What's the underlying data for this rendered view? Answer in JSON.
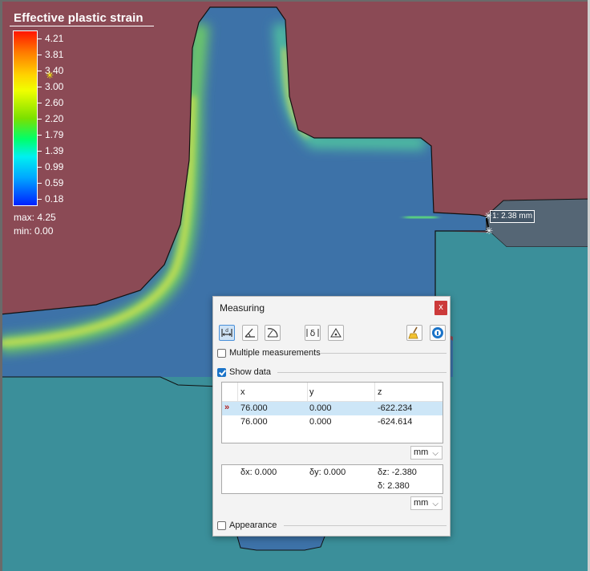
{
  "legend": {
    "title": "Effective plastic strain",
    "values": [
      "4.21",
      "3.81",
      "3.40",
      "3.00",
      "2.60",
      "2.20",
      "1.79",
      "1.39",
      "0.99",
      "0.59",
      "0.18"
    ],
    "max_label": "max:",
    "max_value": "4.25",
    "min_label": "min:",
    "min_value": "0.00",
    "marker_value": "3.40"
  },
  "measure_tag": "1: 2.38 mm",
  "colors": {
    "background_part": "#8b4a55",
    "workpiece_base": "#3b8f9a",
    "die_gray": "#556675",
    "accent_blue": "#1a73c8"
  },
  "dialog": {
    "title": "Measuring",
    "close_label": "x",
    "toolbar": [
      {
        "name": "distance-tool-button",
        "icon": "distance-icon",
        "active": true
      },
      {
        "name": "angle-tool-button",
        "icon": "angle-icon",
        "active": false
      },
      {
        "name": "arc-angle-tool-button",
        "icon": "arc-angle-icon",
        "active": false
      },
      {
        "name": "delta-tool-button",
        "icon": "delta-icon",
        "active": false
      },
      {
        "name": "point-tool-button",
        "icon": "point-icon",
        "active": false
      },
      {
        "name": "clear-button",
        "icon": "broom-icon",
        "active": false
      },
      {
        "name": "info-button",
        "icon": "info-icon",
        "active": false
      }
    ],
    "delta_symbol": "δ",
    "multiple_measurements": {
      "label": "Multiple measurements",
      "checked": false
    },
    "show_data": {
      "label": "Show data",
      "checked": true
    },
    "table": {
      "columns": [
        "x",
        "y",
        "z"
      ],
      "rows": [
        {
          "marker": "»",
          "x": "76.000",
          "y": "0.000",
          "z": "-622.234",
          "selected": true
        },
        {
          "marker": "",
          "x": "76.000",
          "y": "0.000",
          "z": "-624.614",
          "selected": false
        }
      ]
    },
    "unit_1": "mm",
    "deltas": {
      "dx": "δx: 0.000",
      "dy": "δy: 0.000",
      "dz": "δz: -2.380",
      "d": "δ: 2.380"
    },
    "unit_2": "mm",
    "appearance": {
      "label": "Appearance",
      "checked": false
    }
  }
}
